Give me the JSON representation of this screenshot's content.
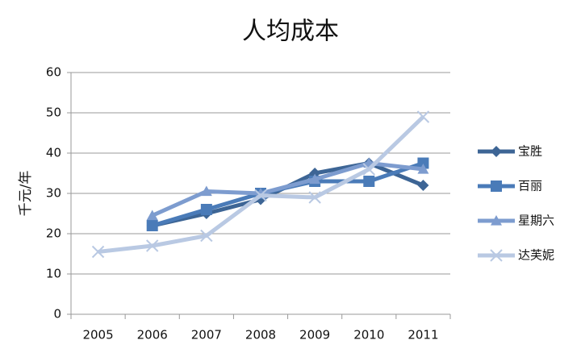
{
  "chart_data": {
    "type": "line",
    "title": "人均成本",
    "y_label": "千元/年",
    "categories": [
      "2005",
      "2006",
      "2007",
      "2008",
      "2009",
      "2010",
      "2011"
    ],
    "ylim": [
      0,
      60
    ],
    "yticks": [
      0,
      10,
      20,
      30,
      40,
      50,
      60
    ],
    "grid": true,
    "legend": "right",
    "series": [
      {
        "name": "宝胜",
        "color": "#3d6595",
        "marker": "diamond",
        "values": [
          null,
          22,
          25,
          28.5,
          35,
          37.5,
          32
        ]
      },
      {
        "name": "百丽",
        "color": "#4a7bb8",
        "marker": "square",
        "values": [
          null,
          22,
          26,
          30,
          33,
          33,
          37.5
        ]
      },
      {
        "name": "星期六",
        "color": "#7d9ccf",
        "marker": "triangle",
        "values": [
          null,
          24.5,
          30.5,
          30,
          33.5,
          37.5,
          36
        ]
      },
      {
        "name": "达芙妮",
        "color": "#b9c9e3",
        "marker": "x",
        "values": [
          15.5,
          17,
          19.5,
          29.5,
          29,
          36,
          49
        ]
      }
    ]
  }
}
